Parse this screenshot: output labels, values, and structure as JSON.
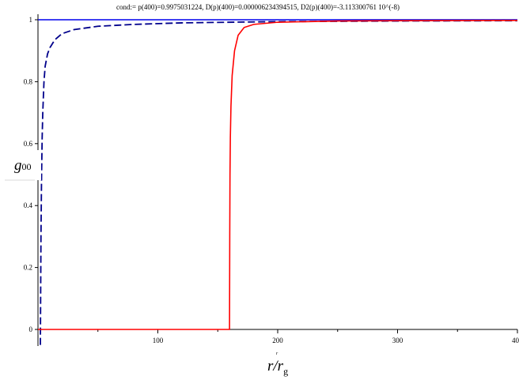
{
  "chart_data": {
    "type": "line",
    "title": "cond:= p(400)=0.9975031224, D(p)(400)=0.000006234394515, D2(p)(400)=-3.113300761 10^(-8)",
    "xlabel_small": "r",
    "xlabel": {
      "main": "r/r",
      "sub": "g"
    },
    "ylabel": {
      "main": "g",
      "sub": "00"
    },
    "xlim": [
      0,
      400
    ],
    "ylim": [
      -0.05,
      1.02
    ],
    "x_ticks": [
      100,
      200,
      300
    ],
    "x_tick_last_label": "40",
    "y_ticks": [
      0,
      0.2,
      0.4,
      0.6,
      0.8,
      1
    ],
    "y_tick_labels": [
      "0",
      "0.2",
      "0.4",
      "0.6",
      "0.8",
      "1"
    ],
    "grid": false,
    "series": [
      {
        "color": "#0000ee",
        "style": "solid",
        "x": [
          0,
          400
        ],
        "y": [
          1,
          1
        ]
      },
      {
        "color": "#00008b",
        "style": "dashed",
        "x": [
          2,
          2.5,
          3,
          3.5,
          4,
          5,
          6,
          8,
          10,
          14,
          20,
          30,
          50,
          80,
          120,
          200,
          300,
          400
        ],
        "y": [
          -0.05,
          0.3,
          0.5,
          0.62,
          0.7,
          0.8,
          0.85,
          0.89,
          0.91,
          0.935,
          0.955,
          0.968,
          0.979,
          0.985,
          0.99,
          0.994,
          0.996,
          0.997
        ]
      },
      {
        "color": "#ff0000",
        "style": "solid",
        "x": [
          0,
          159.8,
          160,
          160.2,
          160.5,
          161,
          162,
          164,
          167,
          172,
          180,
          200,
          250,
          300,
          400
        ],
        "y": [
          0,
          0,
          0.3,
          0.5,
          0.62,
          0.72,
          0.82,
          0.9,
          0.95,
          0.975,
          0.985,
          0.992,
          0.996,
          0.997,
          0.998
        ]
      }
    ]
  }
}
